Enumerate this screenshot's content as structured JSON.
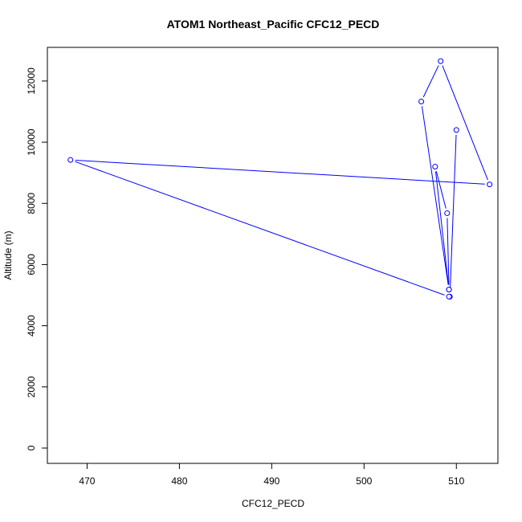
{
  "chart_data": {
    "type": "line",
    "title": "ATOM1 Northeast_Pacific CFC12_PECD",
    "xlabel": "CFC12_PECD",
    "ylabel": "Altitude (m)",
    "xlim": [
      465.7,
      514.5
    ],
    "ylim": [
      -500,
      13100
    ],
    "xticks": [
      470,
      480,
      490,
      500,
      510
    ],
    "yticks": [
      0,
      2000,
      4000,
      6000,
      8000,
      10000,
      12000
    ],
    "grid": false,
    "legend": "none",
    "series": [
      {
        "color": "#0000ff",
        "marker": "open-circle",
        "points": [
          {
            "x": 510.0,
            "y": 10400
          },
          {
            "x": 509.3,
            "y": 4950
          },
          {
            "x": 509.2,
            "y": 5180
          },
          {
            "x": 509.0,
            "y": 7680
          },
          {
            "x": 507.7,
            "y": 9200
          },
          {
            "x": 509.2,
            "y": 5180
          },
          {
            "x": 506.2,
            "y": 11330
          },
          {
            "x": 508.3,
            "y": 12650
          },
          {
            "x": 513.6,
            "y": 8620
          },
          {
            "x": 468.2,
            "y": 9420
          },
          {
            "x": 509.2,
            "y": 4950
          }
        ]
      }
    ]
  }
}
